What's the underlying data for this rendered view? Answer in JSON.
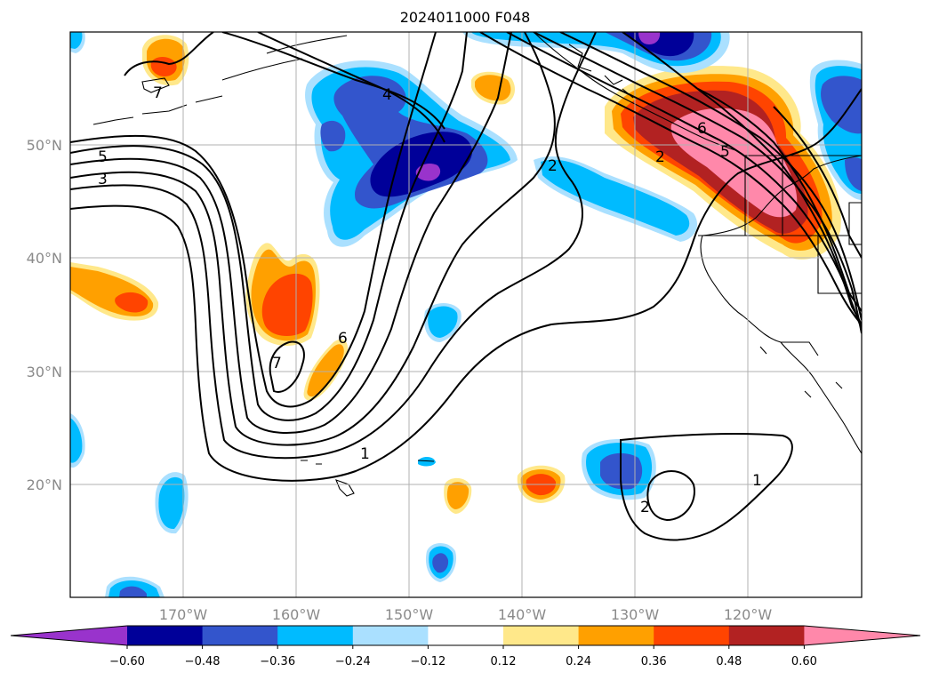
{
  "title": "2024011000 F048",
  "latitude_labels": [
    "50°N",
    "40°N",
    "30°N",
    "20°N"
  ],
  "longitude_labels": [
    "170°W",
    "160°W",
    "150°W",
    "140°W",
    "130°W",
    "120°W"
  ],
  "contour_labels": [
    "5",
    "3",
    "7",
    "4",
    "2",
    "6",
    "5",
    "2",
    "7",
    "6",
    "1",
    "2",
    "1"
  ],
  "colorbar": {
    "tick_labels": [
      "−0.60",
      "−0.48",
      "−0.36",
      "−0.24",
      "−0.12",
      "0.12",
      "0.24",
      "0.36",
      "0.48",
      "0.60"
    ],
    "colors": [
      "#9933cc",
      "#000099",
      "#3355cc",
      "#00bbff",
      "#aae0ff",
      "#ffffff",
      "#ffe88a",
      "#ffa000",
      "#ff4400",
      "#b22222",
      "#ff88aa"
    ]
  }
}
